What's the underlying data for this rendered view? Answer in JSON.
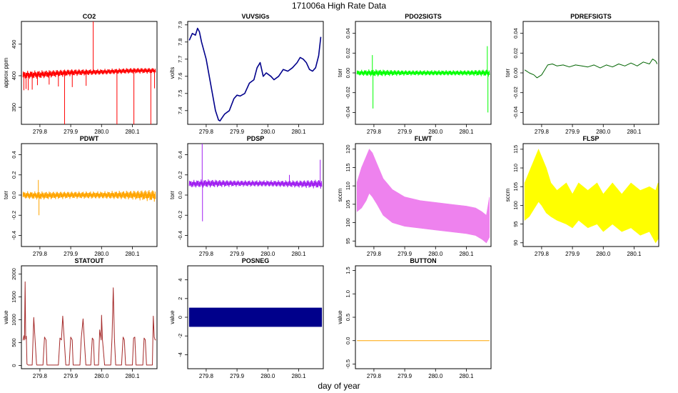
{
  "figure": {
    "title": "171006a   High Rate Data",
    "xlabel": "day of year"
  },
  "chart_data": [
    {
      "type": "line",
      "title": "CO2",
      "ylabel": "approx ppm",
      "color": "#ff0000",
      "xlim": [
        279.74,
        280.18
      ],
      "ylim": [
        323,
        486
      ],
      "xticks": [
        279.8,
        279.9,
        280.0,
        280.1
      ],
      "xtick_labels": [
        "279.8",
        "279.9",
        "280.0",
        "280.1"
      ],
      "yticks": [
        350,
        400,
        450
      ],
      "ytick_labels": [
        "350",
        "400",
        "450"
      ],
      "band": {
        "x": [
          279.745,
          279.8,
          279.9,
          280.0,
          280.1,
          280.175
        ],
        "lo": [
          394,
          395,
          399,
          401,
          403,
          403
        ],
        "hi": [
          408,
          409,
          411,
          411,
          413,
          413
        ]
      },
      "spikes": [
        {
          "x": 279.748,
          "y": 377
        },
        {
          "x": 279.755,
          "y": 379
        },
        {
          "x": 279.762,
          "y": 377
        },
        {
          "x": 279.775,
          "y": 378
        },
        {
          "x": 279.792,
          "y": 385
        },
        {
          "x": 279.83,
          "y": 386
        },
        {
          "x": 279.86,
          "y": 383
        },
        {
          "x": 279.88,
          "y": 323
        },
        {
          "x": 279.905,
          "y": 382
        },
        {
          "x": 279.95,
          "y": 384
        },
        {
          "x": 279.973,
          "y": 486
        },
        {
          "x": 280.05,
          "y": 323
        },
        {
          "x": 280.105,
          "y": 323
        },
        {
          "x": 280.16,
          "y": 323
        },
        {
          "x": 280.172,
          "y": 380
        }
      ]
    },
    {
      "type": "line",
      "title": "VUVSIGs",
      "ylabel": "volts",
      "color": "#00008b",
      "xlim": [
        279.74,
        280.18
      ],
      "ylim": [
        7.32,
        7.92
      ],
      "xticks": [
        279.8,
        279.9,
        280.0,
        280.1
      ],
      "xtick_labels": [
        "279.8",
        "279.9",
        "280.0",
        "280.1"
      ],
      "yticks": [
        7.4,
        7.5,
        7.6,
        7.7,
        7.8,
        7.9
      ],
      "ytick_labels": [
        "7.4",
        "7.5",
        "7.6",
        "7.7",
        "7.8",
        "7.9"
      ],
      "x": [
        279.745,
        279.755,
        279.765,
        279.772,
        279.778,
        279.785,
        279.8,
        279.815,
        279.83,
        279.84,
        279.845,
        279.852,
        279.86,
        279.875,
        279.89,
        279.9,
        279.91,
        279.925,
        279.94,
        279.955,
        279.965,
        279.975,
        279.985,
        279.995,
        280.01,
        280.02,
        280.035,
        280.05,
        280.065,
        280.08,
        280.095,
        280.105,
        280.115,
        280.125,
        280.135,
        280.145,
        280.155,
        280.165,
        280.172
      ],
      "y": [
        7.81,
        7.85,
        7.84,
        7.88,
        7.86,
        7.8,
        7.7,
        7.55,
        7.4,
        7.345,
        7.34,
        7.36,
        7.38,
        7.4,
        7.47,
        7.49,
        7.485,
        7.5,
        7.56,
        7.58,
        7.65,
        7.68,
        7.6,
        7.62,
        7.6,
        7.58,
        7.6,
        7.64,
        7.63,
        7.65,
        7.68,
        7.71,
        7.7,
        7.68,
        7.64,
        7.63,
        7.65,
        7.72,
        7.83
      ]
    },
    {
      "type": "line",
      "title": "PDO2SIGTS",
      "ylabel": "torr",
      "color": "#00ff00",
      "xlim": [
        279.74,
        280.18
      ],
      "ylim": [
        -0.052,
        0.052
      ],
      "xticks": [
        279.8,
        279.9,
        280.0,
        280.1
      ],
      "xtick_labels": [
        "279.8",
        "279.9",
        "280.0",
        "280.1"
      ],
      "yticks": [
        -0.04,
        -0.02,
        0.0,
        0.02,
        0.04
      ],
      "ytick_labels": [
        "-0.04",
        "-0.02",
        "0.00",
        "0.02",
        "0.04"
      ],
      "band": {
        "x": [
          279.745,
          279.8,
          279.9,
          280.0,
          280.1,
          280.175
        ],
        "lo": [
          -0.003,
          -0.004,
          -0.003,
          -0.003,
          -0.003,
          -0.004
        ],
        "hi": [
          0.003,
          0.004,
          0.003,
          0.003,
          0.003,
          0.004
        ]
      },
      "spikes": [
        {
          "x": 279.795,
          "y": 0.018
        },
        {
          "x": 279.797,
          "y": -0.036
        },
        {
          "x": 280.168,
          "y": 0.027
        },
        {
          "x": 280.17,
          "y": -0.04
        }
      ]
    },
    {
      "type": "line",
      "title": "PDREFSIGTS",
      "ylabel": "torr",
      "color": "#006400",
      "xlim": [
        279.74,
        280.18
      ],
      "ylim": [
        -0.052,
        0.052
      ],
      "xticks": [
        279.8,
        279.9,
        280.0,
        280.1
      ],
      "xtick_labels": [
        "279.8",
        "279.9",
        "280.0",
        "280.1"
      ],
      "yticks": [
        -0.04,
        -0.02,
        0.0,
        0.02,
        0.04
      ],
      "ytick_labels": [
        "-0.04",
        "-0.02",
        "0.00",
        "0.02",
        "0.04"
      ],
      "x": [
        279.745,
        279.76,
        279.775,
        279.785,
        279.8,
        279.82,
        279.835,
        279.85,
        279.87,
        279.89,
        279.91,
        279.93,
        279.95,
        279.97,
        279.99,
        280.01,
        280.03,
        280.05,
        280.07,
        280.09,
        280.11,
        280.13,
        280.15,
        280.16,
        280.17,
        280.175
      ],
      "y": [
        0.003,
        0.0,
        -0.002,
        -0.005,
        -0.002,
        0.008,
        0.009,
        0.007,
        0.008,
        0.006,
        0.008,
        0.007,
        0.006,
        0.008,
        0.005,
        0.008,
        0.006,
        0.009,
        0.007,
        0.01,
        0.007,
        0.011,
        0.009,
        0.014,
        0.012,
        0.009
      ]
    },
    {
      "type": "line",
      "title": "PDWT",
      "ylabel": "torr",
      "color": "#ffa500",
      "xlim": [
        279.74,
        280.18
      ],
      "ylim": [
        -0.51,
        0.51
      ],
      "xticks": [
        279.8,
        279.9,
        280.0,
        280.1
      ],
      "xtick_labels": [
        "279.8",
        "279.9",
        "280.0",
        "280.1"
      ],
      "yticks": [
        -0.4,
        -0.2,
        0.0,
        0.2,
        0.4
      ],
      "ytick_labels": [
        "-0.4",
        "-0.2",
        "0.0",
        "0.2",
        "0.4"
      ],
      "band": {
        "x": [
          279.745,
          279.8,
          279.9,
          280.0,
          280.1,
          280.175
        ],
        "lo": [
          -0.04,
          -0.05,
          -0.04,
          -0.04,
          -0.05,
          -0.07
        ],
        "hi": [
          0.04,
          0.04,
          0.04,
          0.04,
          0.05,
          0.06
        ]
      },
      "spikes": [
        {
          "x": 279.795,
          "y": 0.15
        },
        {
          "x": 279.797,
          "y": -0.2
        }
      ]
    },
    {
      "type": "line",
      "title": "PDSP",
      "ylabel": "torr",
      "color": "#a020f0",
      "xlim": [
        279.74,
        280.18
      ],
      "ylim": [
        -0.51,
        0.51
      ],
      "xticks": [
        279.8,
        279.9,
        280.0,
        280.1
      ],
      "xtick_labels": [
        "279.8",
        "279.9",
        "280.0",
        "280.1"
      ],
      "yticks": [
        -0.4,
        -0.2,
        0.0,
        0.2,
        0.4
      ],
      "ytick_labels": [
        "-0.4",
        "-0.2",
        "0.0",
        "0.2",
        "0.4"
      ],
      "band": {
        "x": [
          279.745,
          279.8,
          279.9,
          280.0,
          280.1,
          280.175
        ],
        "lo": [
          0.07,
          0.07,
          0.08,
          0.08,
          0.07,
          0.06
        ],
        "hi": [
          0.15,
          0.16,
          0.15,
          0.15,
          0.15,
          0.16
        ]
      },
      "spikes": [
        {
          "x": 279.787,
          "y": 0.51
        },
        {
          "x": 279.788,
          "y": -0.26
        },
        {
          "x": 280.07,
          "y": 0.2
        },
        {
          "x": 280.17,
          "y": 0.35
        }
      ]
    },
    {
      "type": "area",
      "title": "FLWT",
      "ylabel": "sccm",
      "color": "#ee82ee",
      "xlim": [
        279.74,
        280.18
      ],
      "ylim": [
        93.5,
        121.5
      ],
      "xticks": [
        279.8,
        279.9,
        280.0,
        280.1
      ],
      "xtick_labels": [
        "279.8",
        "279.9",
        "280.0",
        "280.1"
      ],
      "yticks": [
        95,
        100,
        105,
        110,
        115,
        120
      ],
      "ytick_labels": [
        "95",
        "100",
        "105",
        "110",
        "115",
        "120"
      ],
      "band": {
        "x": [
          279.745,
          279.76,
          279.775,
          279.785,
          279.795,
          279.81,
          279.83,
          279.86,
          279.9,
          279.95,
          280.0,
          280.05,
          280.1,
          280.13,
          280.15,
          280.165,
          280.175
        ],
        "lo": [
          103,
          104,
          106,
          108,
          107,
          105,
          102,
          100,
          99,
          98.5,
          98,
          97.5,
          97,
          96.5,
          95.5,
          94.5,
          96
        ],
        "hi": [
          111,
          115,
          118,
          120,
          119,
          116,
          112,
          109,
          107,
          106,
          105.5,
          105,
          104.5,
          104,
          103,
          102,
          107
        ]
      }
    },
    {
      "type": "area",
      "title": "FLSP",
      "ylabel": "sccm",
      "color": "#ffff00",
      "xlim": [
        279.74,
        280.18
      ],
      "ylim": [
        89,
        116.5
      ],
      "xticks": [
        279.8,
        279.9,
        280.0,
        280.1
      ],
      "xtick_labels": [
        "279.8",
        "279.9",
        "280.0",
        "280.1"
      ],
      "yticks": [
        90,
        95,
        100,
        105,
        110,
        115
      ],
      "ytick_labels": [
        "90",
        "95",
        "100",
        "105",
        "110",
        "115"
      ],
      "band": {
        "x": [
          279.745,
          279.76,
          279.775,
          279.79,
          279.8,
          279.815,
          279.83,
          279.85,
          279.88,
          279.9,
          279.92,
          279.95,
          279.98,
          280.0,
          280.03,
          280.06,
          280.09,
          280.12,
          280.15,
          280.17,
          280.178
        ],
        "lo": [
          96,
          97,
          99,
          101,
          100,
          98,
          97,
          96,
          95,
          94,
          96,
          94,
          95,
          93,
          95,
          93,
          94,
          92,
          93,
          90,
          91
        ],
        "hi": [
          106,
          109,
          112,
          115,
          113,
          110,
          106,
          104,
          106,
          103,
          106,
          104,
          106,
          103,
          106,
          103,
          106,
          104,
          105,
          104,
          106
        ]
      }
    },
    {
      "type": "line",
      "title": "STATOUT",
      "ylabel": "value",
      "color": "#a52a2a",
      "xlim": [
        279.74,
        280.18
      ],
      "ylim": [
        -70,
        2180
      ],
      "xticks": [
        279.8,
        279.9,
        280.0,
        280.1
      ],
      "xtick_labels": [
        "279.8",
        "279.9",
        "280.0",
        "280.1"
      ],
      "yticks": [
        0,
        500,
        1000,
        1500,
        2000
      ],
      "ytick_labels": [
        "0",
        "500",
        "1000",
        "1500",
        "2000"
      ],
      "x": [
        279.745,
        279.748,
        279.75,
        279.752,
        279.754,
        279.756,
        279.758,
        279.762,
        279.766,
        279.775,
        279.78,
        279.784,
        279.789,
        279.79,
        279.794,
        279.81,
        279.815,
        279.82,
        279.823,
        279.84,
        279.86,
        279.865,
        279.87,
        279.874,
        279.879,
        279.884,
        279.895,
        279.9,
        279.905,
        279.908,
        279.92,
        279.93,
        279.934,
        279.94,
        279.944,
        279.949,
        279.954,
        279.965,
        279.97,
        279.974,
        279.977,
        279.98,
        279.985,
        279.99,
        279.994,
        279.999,
        280.0,
        280.003,
        280.01,
        280.022,
        280.03,
        280.034,
        280.038,
        280.042,
        280.046,
        280.05,
        280.065,
        280.07,
        280.074,
        280.078,
        280.09,
        280.1,
        280.104,
        280.108,
        280.112,
        280.124,
        280.134,
        280.138,
        280.142,
        280.146,
        280.158,
        280.165,
        280.168,
        280.171,
        280.174,
        280.176
      ],
      "y": [
        550,
        650,
        560,
        1830,
        580,
        640,
        30,
        10,
        10,
        10,
        1050,
        600,
        30,
        10,
        10,
        10,
        620,
        560,
        10,
        10,
        10,
        600,
        560,
        1080,
        560,
        10,
        10,
        620,
        560,
        10,
        10,
        10,
        580,
        1020,
        560,
        10,
        10,
        10,
        600,
        560,
        10,
        10,
        10,
        10,
        780,
        560,
        1100,
        560,
        10,
        10,
        10,
        620,
        1700,
        560,
        10,
        10,
        10,
        620,
        560,
        10,
        10,
        10,
        600,
        620,
        10,
        10,
        10,
        600,
        560,
        10,
        10,
        10,
        1080,
        620,
        560,
        560
      ]
    },
    {
      "type": "area",
      "title": "POSNEG",
      "ylabel": "value",
      "color": "#00008b",
      "xlim": [
        279.74,
        280.18
      ],
      "ylim": [
        -5.5,
        5.5
      ],
      "xticks": [
        279.8,
        279.9,
        280.0,
        280.1
      ],
      "xtick_labels": [
        "279.8",
        "279.9",
        "280.0",
        "280.1"
      ],
      "yticks": [
        -4,
        -2,
        0,
        2,
        4
      ],
      "ytick_labels": [
        "-4",
        "-2",
        "0",
        "2",
        "4"
      ],
      "band": {
        "x": [
          279.745,
          280.175
        ],
        "lo": [
          -1,
          -1
        ],
        "hi": [
          1,
          1
        ]
      }
    },
    {
      "type": "line",
      "title": "BUTTON",
      "ylabel": "value",
      "color": "#ffa500",
      "xlim": [
        279.74,
        280.18
      ],
      "ylim": [
        -0.6,
        1.6
      ],
      "xticks": [
        279.8,
        279.9,
        280.0,
        280.1
      ],
      "xtick_labels": [
        "279.8",
        "279.9",
        "280.0",
        "280.1"
      ],
      "yticks": [
        -0.5,
        0.0,
        0.5,
        1.0,
        1.5
      ],
      "ytick_labels": [
        "-0.5",
        "0.0",
        "0.5",
        "1.0",
        "1.5"
      ],
      "x": [
        279.745,
        280.175
      ],
      "y": [
        0,
        0
      ]
    }
  ]
}
